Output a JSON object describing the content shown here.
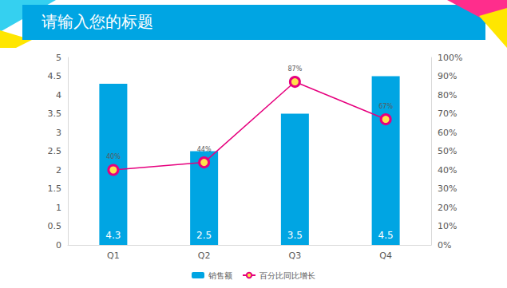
{
  "chart_data": {
    "type": "bar",
    "title": "请输入您的标题",
    "categories": [
      "Q1",
      "Q2",
      "Q3",
      "Q4"
    ],
    "series": [
      {
        "name": "销售额",
        "type": "bar",
        "color": "#00a5e3",
        "values": [
          4.3,
          2.5,
          3.5,
          4.5
        ]
      },
      {
        "name": "百分比同比增长",
        "type": "line",
        "color": "#e6007e",
        "marker": "circle",
        "axis": "y2",
        "values": [
          40,
          44,
          87,
          67
        ],
        "value_labels": [
          "40%",
          "44%",
          "87%",
          "67%"
        ]
      }
    ],
    "ylim": [
      0,
      5
    ],
    "yticks": [
      0,
      0.5,
      1,
      1.5,
      2,
      2.5,
      3,
      3.5,
      4,
      4.5,
      5
    ],
    "y2lim": [
      0,
      100
    ],
    "y2ticks": [
      {
        "value": 0,
        "label": "0%"
      },
      {
        "value": 10,
        "label": "10%"
      },
      {
        "value": 20,
        "label": "20%"
      },
      {
        "value": 30,
        "label": "30%"
      },
      {
        "value": 40,
        "label": "40%"
      },
      {
        "value": 50,
        "label": "50%"
      },
      {
        "value": 60,
        "label": "60%"
      },
      {
        "value": 70,
        "label": "70%"
      },
      {
        "value": 80,
        "label": "80%"
      },
      {
        "value": 90,
        "label": "90%"
      },
      {
        "value": 100,
        "label": "100%"
      }
    ],
    "legend": "bottom",
    "data_labels": true,
    "grid": false
  }
}
